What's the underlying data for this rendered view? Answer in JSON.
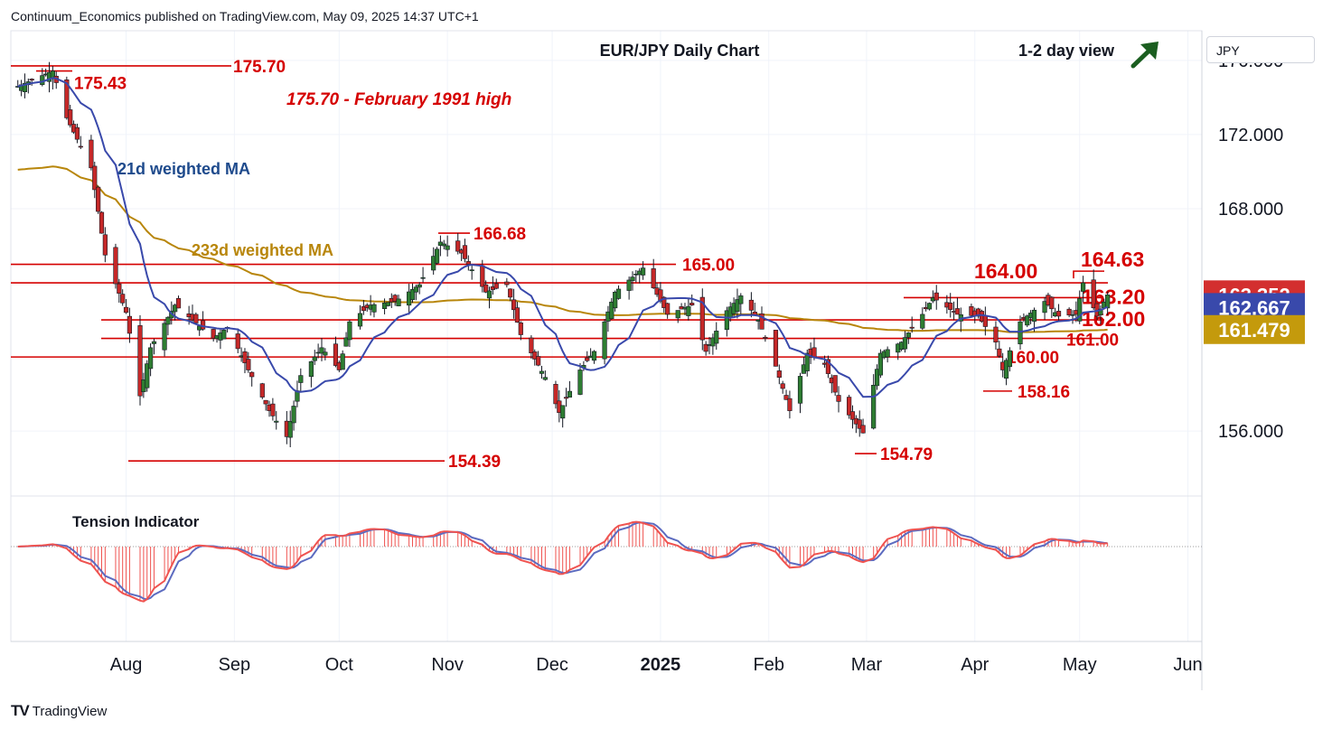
{
  "header": {
    "publisher": "Continuum_Economics published on TradingView.com, May 09, 2025 14:37 UTC+1",
    "currency": "JPY"
  },
  "footer": {
    "brand": "TradingView"
  },
  "chart_data": {
    "type": "candlestick",
    "title": "EUR/JPY Daily Chart",
    "view": "1-2 day view",
    "view_direction": "up-arrow-icon",
    "y_ticks": [
      "176.000",
      "172.000",
      "168.000",
      "156.000"
    ],
    "x_ticks": [
      {
        "label": "Aug",
        "date": "2024-08-01"
      },
      {
        "label": "Sep",
        "date": "2024-09-01"
      },
      {
        "label": "Oct",
        "date": "2024-10-01"
      },
      {
        "label": "Nov",
        "date": "2024-11-01"
      },
      {
        "label": "Dec",
        "date": "2024-12-01"
      },
      {
        "label": "2025",
        "date": "2025-01-01"
      },
      {
        "label": "Feb",
        "date": "2025-02-01"
      },
      {
        "label": "Mar",
        "date": "2025-03-01"
      },
      {
        "label": "Apr",
        "date": "2025-04-01"
      },
      {
        "label": "May",
        "date": "2025-05-01"
      },
      {
        "label": "Jun",
        "date": "2025-06-01"
      }
    ],
    "price_badges": [
      {
        "value": "163.352",
        "color": "#d32f2f"
      },
      {
        "value": "162.667",
        "color": "#3949ab"
      },
      {
        "value": "161.479",
        "color": "#c49a0c"
      }
    ],
    "annotations": [
      {
        "text": "175.70 - February 1991 high",
        "color": "#d50000"
      },
      {
        "text": "21d weighted MA",
        "color": "#1e4a8c"
      },
      {
        "text": "233d weighted MA",
        "color": "#b8860b"
      },
      {
        "text": "Tension Indicator",
        "color": "#131722"
      }
    ],
    "levels": [
      {
        "label": "175.70",
        "value": 175.7
      },
      {
        "label": "175.43",
        "value": 175.43
      },
      {
        "label": "166.68",
        "value": 166.68
      },
      {
        "label": "165.00",
        "value": 165.0
      },
      {
        "label": "164.00",
        "value": 164.0
      },
      {
        "label": "164.63",
        "value": 164.63
      },
      {
        "label": "163.20",
        "value": 163.2
      },
      {
        "label": "162.00",
        "value": 162.0
      },
      {
        "label": "161.00",
        "value": 161.0
      },
      {
        "label": "160.00",
        "value": 160.0
      },
      {
        "label": "158.16",
        "value": 158.16
      },
      {
        "label": "154.39",
        "value": 154.39
      },
      {
        "label": "154.79",
        "value": 154.79
      }
    ],
    "close_anchors": [
      {
        "date": "2024-07-01",
        "close": 174.6
      },
      {
        "date": "2024-07-11",
        "close": 175.43
      },
      {
        "date": "2024-07-15",
        "close": 172.9
      },
      {
        "date": "2024-07-22",
        "close": 170.2
      },
      {
        "date": "2024-07-26",
        "close": 165.5
      },
      {
        "date": "2024-08-01",
        "close": 162.4
      },
      {
        "date": "2024-08-05",
        "close": 157.9
      },
      {
        "date": "2024-08-08",
        "close": 160.5
      },
      {
        "date": "2024-08-15",
        "close": 162.8
      },
      {
        "date": "2024-08-20",
        "close": 162.0
      },
      {
        "date": "2024-08-26",
        "close": 161.0
      },
      {
        "date": "2024-08-30",
        "close": 161.6
      },
      {
        "date": "2024-09-05",
        "close": 159.3
      },
      {
        "date": "2024-09-11",
        "close": 157.1
      },
      {
        "date": "2024-09-16",
        "close": 155.7
      },
      {
        "date": "2024-09-20",
        "close": 159.0
      },
      {
        "date": "2024-09-26",
        "close": 160.5
      },
      {
        "date": "2024-10-01",
        "close": 159.3
      },
      {
        "date": "2024-10-04",
        "close": 161.9
      },
      {
        "date": "2024-10-10",
        "close": 162.8
      },
      {
        "date": "2024-10-17",
        "close": 163.0
      },
      {
        "date": "2024-10-24",
        "close": 163.9
      },
      {
        "date": "2024-10-30",
        "close": 166.2
      },
      {
        "date": "2024-11-05",
        "close": 165.6
      },
      {
        "date": "2024-11-12",
        "close": 163.5
      },
      {
        "date": "2024-11-18",
        "close": 163.9
      },
      {
        "date": "2024-11-22",
        "close": 161.2
      },
      {
        "date": "2024-11-29",
        "close": 158.9
      },
      {
        "date": "2024-12-03",
        "close": 157.0
      },
      {
        "date": "2024-12-09",
        "close": 159.3
      },
      {
        "date": "2024-12-13",
        "close": 160.3
      },
      {
        "date": "2024-12-19",
        "close": 163.5
      },
      {
        "date": "2024-12-27",
        "close": 164.8
      },
      {
        "date": "2025-01-03",
        "close": 162.3
      },
      {
        "date": "2025-01-10",
        "close": 162.8
      },
      {
        "date": "2025-01-14",
        "close": 160.3
      },
      {
        "date": "2025-01-20",
        "close": 162.5
      },
      {
        "date": "2025-01-24",
        "close": 163.3
      },
      {
        "date": "2025-01-29",
        "close": 162.0
      },
      {
        "date": "2025-02-03",
        "close": 159.5
      },
      {
        "date": "2025-02-07",
        "close": 157.1
      },
      {
        "date": "2025-02-12",
        "close": 160.2
      },
      {
        "date": "2025-02-17",
        "close": 159.6
      },
      {
        "date": "2025-02-21",
        "close": 157.6
      },
      {
        "date": "2025-02-28",
        "close": 155.9
      },
      {
        "date": "2025-03-05",
        "close": 160.2
      },
      {
        "date": "2025-03-11",
        "close": 160.8
      },
      {
        "date": "2025-03-17",
        "close": 162.3
      },
      {
        "date": "2025-03-20",
        "close": 163.2
      },
      {
        "date": "2025-03-27",
        "close": 162.3
      },
      {
        "date": "2025-04-02",
        "close": 162.2
      },
      {
        "date": "2025-04-07",
        "close": 160.8
      },
      {
        "date": "2025-04-09",
        "close": 159.3
      },
      {
        "date": "2025-04-14",
        "close": 161.9
      },
      {
        "date": "2025-04-21",
        "close": 163.0
      },
      {
        "date": "2025-04-25",
        "close": 162.2
      },
      {
        "date": "2025-04-30",
        "close": 162.3
      },
      {
        "date": "2025-05-02",
        "close": 164.0
      },
      {
        "date": "2025-05-06",
        "close": 162.2
      },
      {
        "date": "2025-05-09",
        "close": 163.35
      }
    ],
    "ma_21d": {
      "name": "21d weighted MA",
      "color": "#3949ab"
    },
    "ma_233d": {
      "name": "233d weighted MA",
      "color": "#b8860b"
    },
    "x_range": [
      "2024-06-29",
      "2025-06-05"
    ],
    "y_range": [
      152.5,
      177.6
    ],
    "colors": {
      "up": "#2e7d32",
      "down": "#c62828",
      "level": "#d50000",
      "tension_up": "#ef5350",
      "tension_line": "#5c6bc0"
    }
  }
}
